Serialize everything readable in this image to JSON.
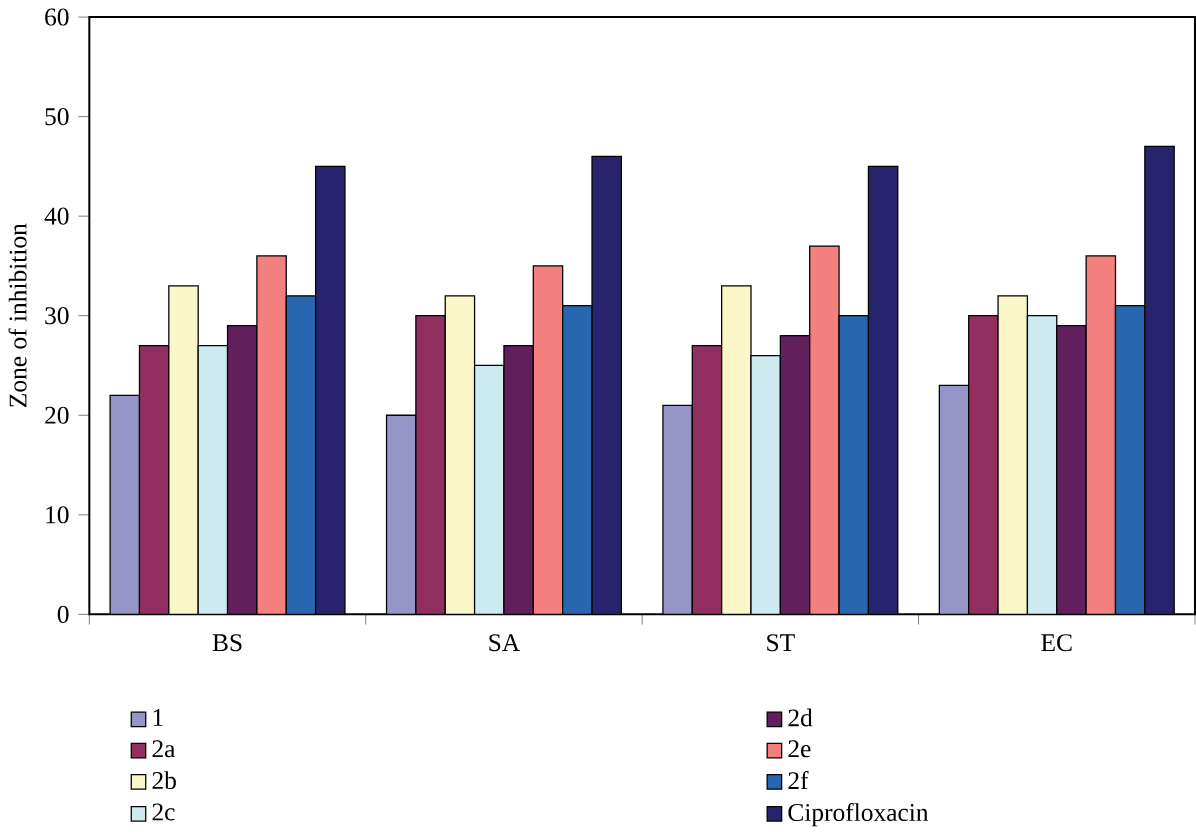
{
  "chart_data": {
    "type": "bar",
    "ylabel": "Zone of inhibition",
    "categories": [
      "BS",
      "SA",
      "ST",
      "EC"
    ],
    "series": [
      {
        "name": "1",
        "color": "#9595c8",
        "values": [
          22,
          20,
          21,
          23
        ]
      },
      {
        "name": "2a",
        "color": "#913060",
        "values": [
          27,
          30,
          27,
          30
        ]
      },
      {
        "name": "2b",
        "color": "#faf6c8",
        "values": [
          33,
          32,
          33,
          32
        ]
      },
      {
        "name": "2c",
        "color": "#cdeaf0",
        "values": [
          27,
          25,
          26,
          30
        ]
      },
      {
        "name": "2d",
        "color": "#611f5e",
        "values": [
          29,
          27,
          28,
          29
        ]
      },
      {
        "name": "2e",
        "color": "#f3807e",
        "values": [
          36,
          35,
          37,
          36
        ]
      },
      {
        "name": "2f",
        "color": "#2866b0",
        "values": [
          32,
          31,
          30,
          31
        ]
      },
      {
        "name": "Ciprofloxacin",
        "color": "#27246d",
        "values": [
          45,
          46,
          45,
          47
        ]
      }
    ],
    "ylim": [
      0,
      60
    ],
    "yticks": [
      0,
      10,
      20,
      30,
      40,
      50,
      60
    ],
    "legend": "bottom"
  }
}
